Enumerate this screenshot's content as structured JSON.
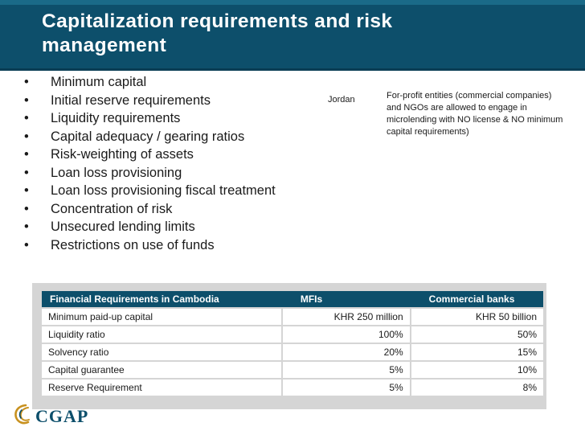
{
  "slide": {
    "title": "Capitalization requirements and risk management"
  },
  "bullets": [
    "Minimum capital",
    "Initial reserve requirements",
    "Liquidity requirements",
    "Capital adequacy / gearing ratios",
    "Risk-weighting of assets",
    "Loan loss provisioning",
    "Loan loss provisioning fiscal treatment",
    "Concentration of risk",
    "Unsecured lending limits",
    "Restrictions on use of funds"
  ],
  "bullet_glyph": "•",
  "example": {
    "country": "Jordan",
    "text": "For-profit entities (commercial companies) and NGOs are allowed to engage in microlending with NO license & NO minimum capital requirements)"
  },
  "table": {
    "headers": [
      "Financial Requirements in Cambodia",
      "MFIs",
      "Commercial banks"
    ],
    "rows": [
      [
        "Minimum paid-up capital",
        "KHR 250 million",
        "KHR 50 billion"
      ],
      [
        "Liquidity ratio",
        "100%",
        "50%"
      ],
      [
        "Solvency ratio",
        "20%",
        "15%"
      ],
      [
        "Capital guarantee",
        "5%",
        "10%"
      ],
      [
        "Reserve Requirement",
        "5%",
        "8%"
      ]
    ]
  },
  "footer": {
    "logo_text": "CGAP"
  },
  "colors": {
    "header_bg": "#0d4f6b",
    "table_header_bg": "#0d4f6b",
    "logo_gold": "#c8911e"
  }
}
